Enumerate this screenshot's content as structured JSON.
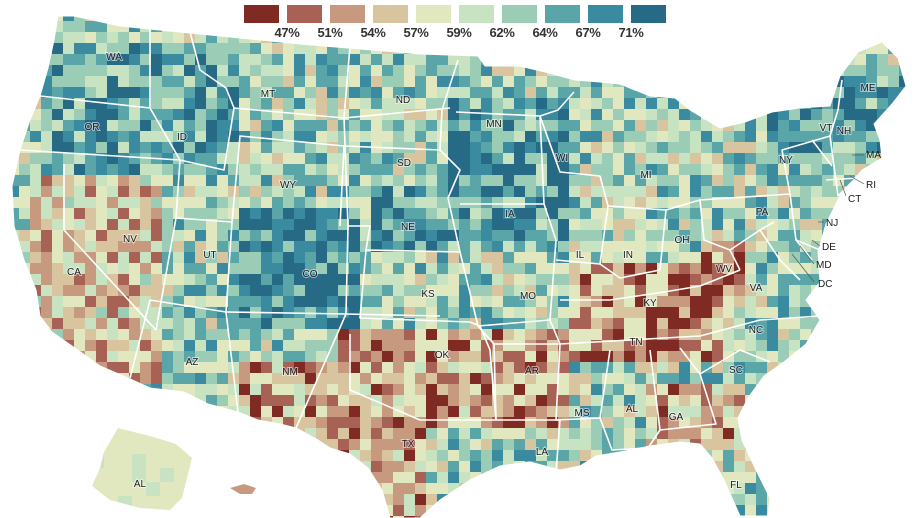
{
  "legend": {
    "items": [
      {
        "label": "47%",
        "color": "#7f2a23"
      },
      {
        "label": "51%",
        "color": "#a86155"
      },
      {
        "label": "54%",
        "color": "#c79a80"
      },
      {
        "label": "57%",
        "color": "#d8c49e"
      },
      {
        "label": "59%",
        "color": "#e1e8c0"
      },
      {
        "label": "62%",
        "color": "#c7e3c2"
      },
      {
        "label": "64%",
        "color": "#9bccb6"
      },
      {
        "label": "67%",
        "color": "#5aa5a8"
      },
      {
        "label": "71%",
        "color": "#3a8aa0"
      },
      {
        "label": "",
        "color": "#266a86"
      }
    ]
  },
  "states": {
    "WA": "WA",
    "OR": "OR",
    "CA": "CA",
    "NV": "NV",
    "ID": "ID",
    "MT": "MT",
    "WY": "WY",
    "UT": "UT",
    "AZ": "AZ",
    "CO": "CO",
    "NM": "NM",
    "ND": "ND",
    "SD": "SD",
    "NE": "NE",
    "KS": "KS",
    "OK": "OK",
    "TX": "TX",
    "MN": "MN",
    "IA": "IA",
    "MO": "MO",
    "AR": "AR",
    "LA": "LA",
    "WI": "WI",
    "IL": "IL",
    "MS": "MS",
    "MI": "MI",
    "IN": "IN",
    "KY": "KY",
    "TN": "TN",
    "AL": "AL",
    "OH": "OH",
    "WV": "WV",
    "GA": "GA",
    "FL": "FL",
    "SC": "SC",
    "NC": "NC",
    "VA": "VA",
    "PA": "PA",
    "NY": "NY",
    "VT": "VT",
    "NH": "NH",
    "ME": "ME",
    "MA": "MA",
    "RI": "RI",
    "CT": "CT",
    "NJ": "NJ",
    "DE": "DE",
    "MD": "MD",
    "DC": "DC",
    "AK": "AL"
  }
}
